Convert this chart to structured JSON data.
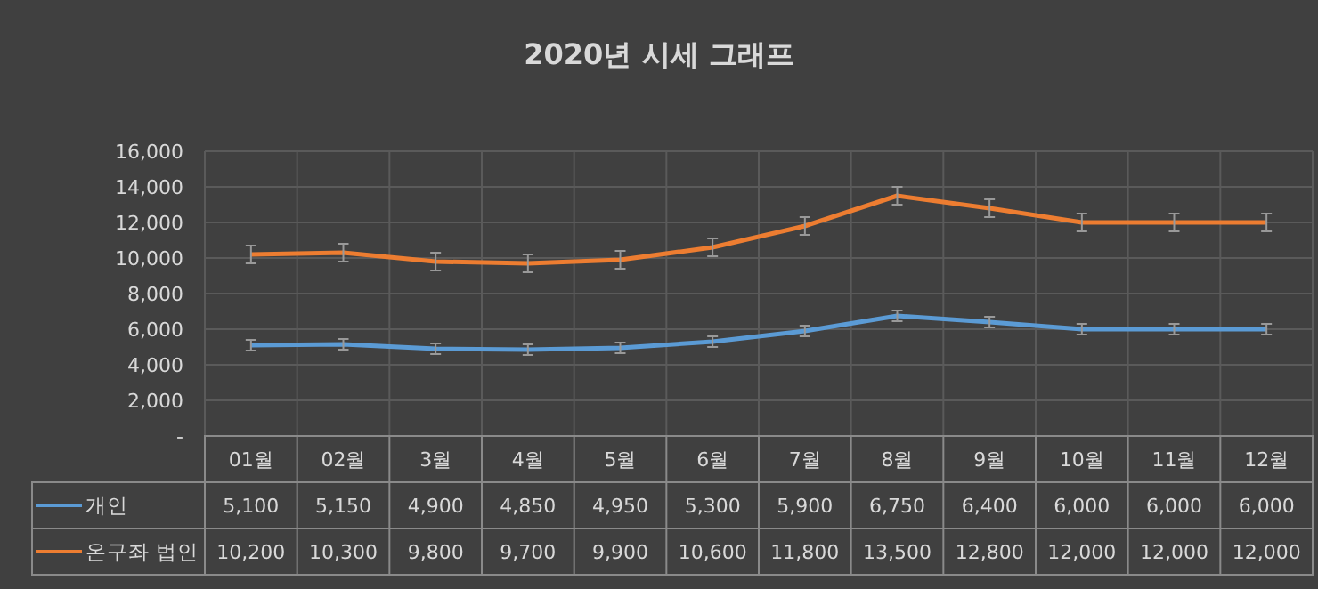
{
  "chart_data": {
    "type": "line",
    "title": "2020년 시세 그래프",
    "categories": [
      "01월",
      "02월",
      "3월",
      "4월",
      "5월",
      "6월",
      "7월",
      "8월",
      "9월",
      "10월",
      "11월",
      "12월"
    ],
    "series": [
      {
        "name": "개인",
        "color": "#5b9bd5",
        "values": [
          5100,
          5150,
          4900,
          4850,
          4950,
          5300,
          5900,
          6750,
          6400,
          6000,
          6000,
          6000
        ],
        "errors": [
          300,
          300,
          300,
          300,
          300,
          300,
          300,
          300,
          300,
          300,
          300,
          300
        ],
        "value_labels": [
          "5,100",
          "5,150",
          "4,900",
          "4,850",
          "4,950",
          "5,300",
          "5,900",
          "6,750",
          "6,400",
          "6,000",
          "6,000",
          "6,000"
        ]
      },
      {
        "name": "온구좌 법인",
        "color": "#ed7d31",
        "values": [
          10200,
          10300,
          9800,
          9700,
          9900,
          10600,
          11800,
          13500,
          12800,
          12000,
          12000,
          12000
        ],
        "errors": [
          500,
          500,
          500,
          500,
          500,
          500,
          500,
          500,
          500,
          500,
          500,
          500
        ],
        "value_labels": [
          "10,200",
          "10,300",
          "9,800",
          "9,700",
          "9,900",
          "10,600",
          "11,800",
          "13,500",
          "12,800",
          "12,000",
          "12,000",
          "12,000"
        ]
      }
    ],
    "ylim": [
      0,
      16000
    ],
    "yticks": [
      {
        "value": 0,
        "label": "-"
      },
      {
        "value": 2000,
        "label": "2,000"
      },
      {
        "value": 4000,
        "label": "4,000"
      },
      {
        "value": 6000,
        "label": "6,000"
      },
      {
        "value": 8000,
        "label": "8,000"
      },
      {
        "value": 10000,
        "label": "10,000"
      },
      {
        "value": 12000,
        "label": "12,000"
      },
      {
        "value": 14000,
        "label": "14,000"
      },
      {
        "value": 16000,
        "label": "16,000"
      }
    ],
    "grid": true,
    "legend": "bottom",
    "marker": "none",
    "line_style": "solid"
  }
}
